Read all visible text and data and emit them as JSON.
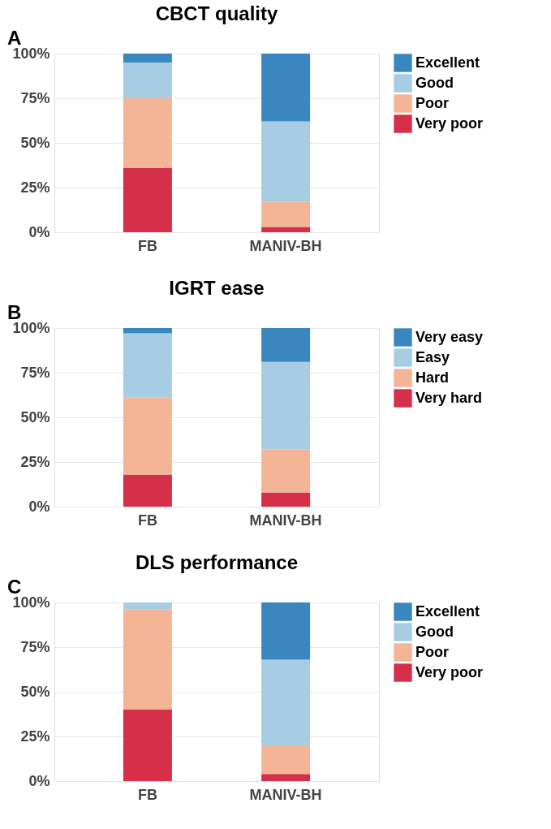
{
  "chart_data": [
    {
      "type": "bar",
      "title": "CBCT quality",
      "annotations": [
        "A"
      ],
      "categories": [
        "FB",
        "MANIV-BH"
      ],
      "stacked": true,
      "ylim": [
        0,
        100
      ],
      "yticks": [
        {
          "value": 0,
          "label": "0%"
        },
        {
          "value": 25,
          "label": "25%"
        },
        {
          "value": 50,
          "label": "50%"
        },
        {
          "value": 75,
          "label": "75%"
        },
        {
          "value": 100,
          "label": "100%"
        }
      ],
      "grid": "y",
      "legend": "right",
      "series": [
        {
          "name": "Very poor",
          "color": "#d52f4a",
          "values": [
            36,
            3
          ]
        },
        {
          "name": "Poor",
          "color": "#f4b596",
          "values": [
            39,
            14
          ]
        },
        {
          "name": "Good",
          "color": "#a6cde3",
          "values": [
            20,
            45
          ]
        },
        {
          "name": "Excellent",
          "color": "#3a87c0",
          "values": [
            5,
            38
          ]
        }
      ]
    },
    {
      "type": "bar",
      "title": "IGRT ease",
      "annotations": [
        "B"
      ],
      "categories": [
        "FB",
        "MANIV-BH"
      ],
      "stacked": true,
      "ylim": [
        0,
        100
      ],
      "yticks": [
        {
          "value": 0,
          "label": "0%"
        },
        {
          "value": 25,
          "label": "25%"
        },
        {
          "value": 50,
          "label": "50%"
        },
        {
          "value": 75,
          "label": "75%"
        },
        {
          "value": 100,
          "label": "100%"
        }
      ],
      "grid": "y",
      "legend": "right",
      "series": [
        {
          "name": "Very hard",
          "color": "#d52f4a",
          "values": [
            18,
            8
          ]
        },
        {
          "name": "Hard",
          "color": "#f4b596",
          "values": [
            43,
            24
          ]
        },
        {
          "name": "Easy",
          "color": "#a6cde3",
          "values": [
            36,
            49
          ]
        },
        {
          "name": "Very easy",
          "color": "#3a87c0",
          "values": [
            3,
            19
          ]
        }
      ]
    },
    {
      "type": "bar",
      "title": "DLS performance",
      "annotations": [
        "C"
      ],
      "categories": [
        "FB",
        "MANIV-BH"
      ],
      "stacked": true,
      "ylim": [
        0,
        100
      ],
      "yticks": [
        {
          "value": 0,
          "label": "0%"
        },
        {
          "value": 25,
          "label": "25%"
        },
        {
          "value": 50,
          "label": "50%"
        },
        {
          "value": 75,
          "label": "75%"
        },
        {
          "value": 100,
          "label": "100%"
        }
      ],
      "grid": "y",
      "legend": "right",
      "series": [
        {
          "name": "Very poor",
          "color": "#d52f4a",
          "values": [
            40,
            4
          ]
        },
        {
          "name": "Poor",
          "color": "#f4b596",
          "values": [
            56,
            16
          ]
        },
        {
          "name": "Good",
          "color": "#a6cde3",
          "values": [
            4,
            48
          ]
        },
        {
          "name": "Excellent",
          "color": "#3a87c0",
          "values": [
            0,
            32
          ]
        }
      ]
    }
  ]
}
